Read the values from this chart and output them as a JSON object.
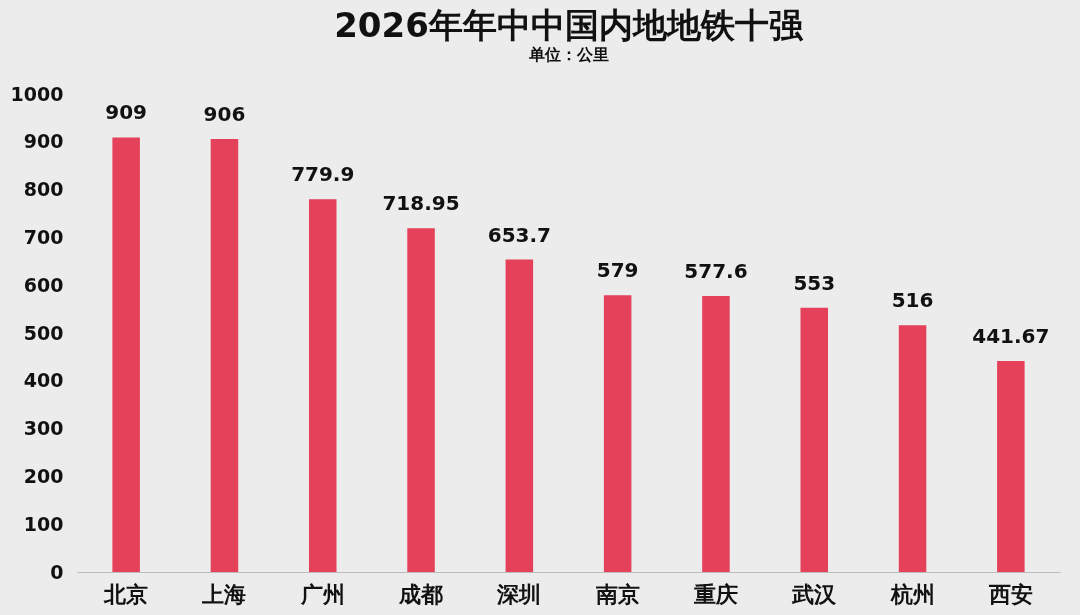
{
  "chart_data": {
    "type": "bar",
    "title": "2026年年中中国内地地铁十强",
    "subtitle": "单位：公里",
    "categories": [
      "北京",
      "上海",
      "广州",
      "成都",
      "深圳",
      "南京",
      "重庆",
      "武汉",
      "杭州",
      "西安"
    ],
    "values": [
      909,
      906,
      779.9,
      718.95,
      653.7,
      579,
      577.6,
      553,
      516,
      441.67
    ],
    "color": "#e6415a",
    "ylim": [
      0,
      1000
    ],
    "yticks": [
      0,
      100,
      200,
      300,
      400,
      500,
      600,
      700,
      800,
      900,
      1000
    ],
    "data_labels": true,
    "grid": false
  }
}
